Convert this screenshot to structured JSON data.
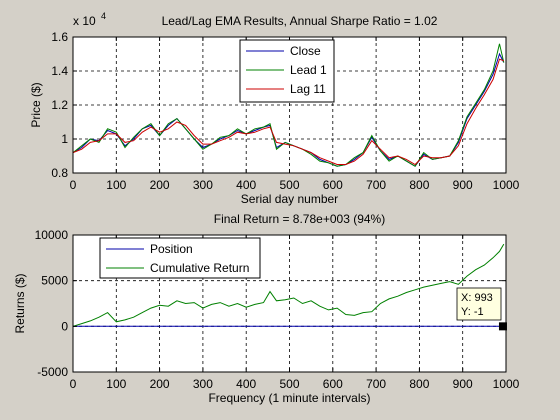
{
  "figure": {
    "background": "#d4d0c8",
    "axes_background": "#ffffff"
  },
  "chart_data": [
    {
      "type": "line",
      "title": "Lead/Lag EMA Results, Annual Sharpe Ratio = 1.02",
      "xlabel": "Serial day number",
      "ylabel": "Price ($)",
      "y_exponent_label": "x 10",
      "y_exponent_power": "4",
      "xlim": [
        0,
        1000
      ],
      "ylim": [
        0.8,
        1.6
      ],
      "xticks": [
        0,
        100,
        200,
        300,
        400,
        500,
        600,
        700,
        800,
        900,
        1000
      ],
      "yticks": [
        0.8,
        1,
        1.2,
        1.4,
        1.6
      ],
      "ytick_labels": [
        "0.8",
        "1",
        "1.2",
        "1.4",
        "1.6"
      ],
      "grid": true,
      "legend_position": "top-center",
      "x": [
        0,
        20,
        40,
        60,
        80,
        100,
        120,
        140,
        160,
        180,
        200,
        220,
        240,
        260,
        280,
        300,
        320,
        340,
        360,
        380,
        400,
        420,
        440,
        455,
        470,
        490,
        510,
        530,
        550,
        570,
        590,
        610,
        630,
        650,
        670,
        690,
        710,
        730,
        750,
        770,
        790,
        810,
        830,
        850,
        870,
        890,
        910,
        930,
        950,
        970,
        985,
        995
      ],
      "series": [
        {
          "name": "Close",
          "color": "#0000aa",
          "values": [
            0.92,
            0.95,
            1.0,
            0.99,
            1.05,
            1.03,
            0.96,
            1.0,
            1.06,
            1.08,
            1.02,
            1.08,
            1.12,
            1.06,
            1.0,
            0.95,
            0.97,
            1.0,
            1.02,
            1.05,
            1.03,
            1.05,
            1.07,
            1.08,
            0.95,
            0.98,
            0.96,
            0.94,
            0.92,
            0.88,
            0.86,
            0.84,
            0.85,
            0.88,
            0.92,
            1.01,
            0.93,
            0.88,
            0.9,
            0.87,
            0.84,
            0.91,
            0.88,
            0.89,
            0.9,
            0.98,
            1.12,
            1.2,
            1.28,
            1.38,
            1.5,
            1.45
          ]
        },
        {
          "name": "Lead 1",
          "color": "#008000",
          "values": [
            0.92,
            0.96,
            1.0,
            0.98,
            1.06,
            1.04,
            0.95,
            1.01,
            1.06,
            1.09,
            1.02,
            1.09,
            1.12,
            1.06,
            1.0,
            0.94,
            0.97,
            1.01,
            1.02,
            1.06,
            1.03,
            1.06,
            1.07,
            1.09,
            0.94,
            0.98,
            0.96,
            0.94,
            0.91,
            0.87,
            0.86,
            0.84,
            0.85,
            0.89,
            0.92,
            1.02,
            0.93,
            0.87,
            0.9,
            0.87,
            0.84,
            0.92,
            0.88,
            0.89,
            0.9,
            0.99,
            1.13,
            1.21,
            1.29,
            1.4,
            1.56,
            1.45
          ]
        },
        {
          "name": "Lag 11",
          "color": "#cc0000",
          "values": [
            0.92,
            0.94,
            0.98,
            0.99,
            1.03,
            1.03,
            0.98,
            0.99,
            1.04,
            1.07,
            1.04,
            1.06,
            1.1,
            1.08,
            1.02,
            0.97,
            0.97,
            0.99,
            1.01,
            1.04,
            1.03,
            1.04,
            1.06,
            1.07,
            0.98,
            0.97,
            0.96,
            0.94,
            0.92,
            0.89,
            0.87,
            0.85,
            0.85,
            0.87,
            0.91,
            0.99,
            0.94,
            0.89,
            0.9,
            0.88,
            0.85,
            0.9,
            0.89,
            0.89,
            0.9,
            0.96,
            1.09,
            1.18,
            1.26,
            1.35,
            1.47,
            1.46
          ]
        }
      ]
    },
    {
      "type": "line",
      "title": "Final Return = 8.78e+003 (94%)",
      "xlabel": "Frequency (1 minute intervals)",
      "ylabel": "Returns ($)",
      "xlim": [
        0,
        1000
      ],
      "ylim": [
        -5000,
        10000
      ],
      "xticks": [
        0,
        100,
        200,
        300,
        400,
        500,
        600,
        700,
        800,
        900,
        1000
      ],
      "yticks": [
        -5000,
        0,
        5000,
        10000
      ],
      "ytick_labels": [
        "-5000",
        "0",
        "5000",
        "10000"
      ],
      "grid": true,
      "legend_position": "top-left",
      "x": [
        0,
        20,
        40,
        60,
        80,
        100,
        120,
        140,
        160,
        180,
        200,
        220,
        240,
        260,
        280,
        300,
        320,
        340,
        360,
        380,
        400,
        420,
        440,
        455,
        470,
        490,
        510,
        530,
        550,
        570,
        590,
        610,
        630,
        650,
        670,
        690,
        710,
        730,
        750,
        770,
        790,
        810,
        830,
        850,
        870,
        890,
        910,
        930,
        950,
        970,
        985,
        995
      ],
      "series": [
        {
          "name": "Position",
          "color": "#0000aa",
          "values": [
            0,
            0,
            0,
            0,
            0,
            0,
            0,
            0,
            0,
            0,
            0,
            0,
            0,
            0,
            0,
            0,
            0,
            0,
            0,
            0,
            0,
            0,
            0,
            0,
            0,
            0,
            0,
            0,
            0,
            0,
            0,
            0,
            0,
            0,
            0,
            0,
            0,
            0,
            0,
            0,
            0,
            0,
            0,
            0,
            0,
            0,
            0,
            0,
            0,
            0,
            0,
            0
          ]
        },
        {
          "name": "Cumulative Return",
          "color": "#008000",
          "values": [
            0,
            300,
            600,
            1000,
            1500,
            500,
            700,
            1000,
            1500,
            2000,
            2300,
            2200,
            2800,
            2500,
            2600,
            2000,
            2400,
            2600,
            2200,
            2500,
            2100,
            2400,
            2600,
            3800,
            2800,
            2900,
            3100,
            2500,
            2800,
            2200,
            1800,
            2000,
            1300,
            1200,
            1500,
            1600,
            2500,
            3000,
            3300,
            3700,
            4000,
            4300,
            4500,
            4700,
            4900,
            4600,
            5500,
            6200,
            6700,
            7500,
            8200,
            9000
          ]
        }
      ],
      "annotation": {
        "x_text": "X: 993",
        "y_text": "Y: -1",
        "x": 993,
        "y": -1
      }
    }
  ]
}
